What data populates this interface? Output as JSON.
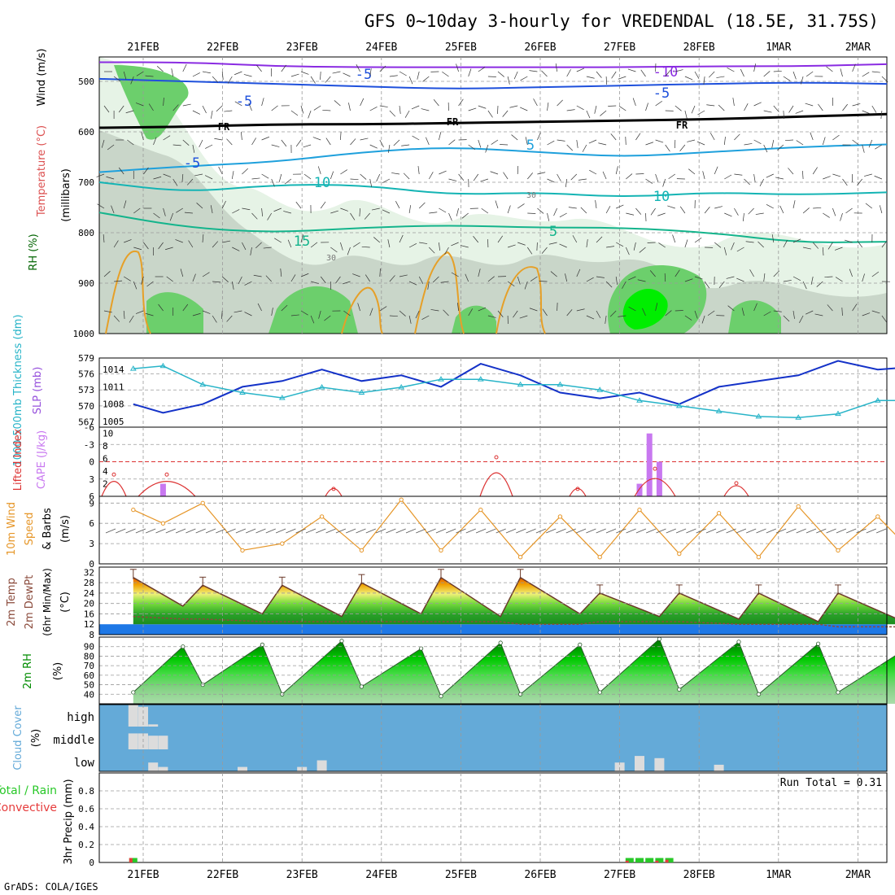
{
  "title": "GFS 0~10day 3-hourly for VREDENDAL (18.5E, 31.75S)",
  "credit": "GrADS: COLA/IGES",
  "dates_top": [
    "21FEB",
    "22FEB",
    "23FEB",
    "24FEB",
    "25FEB",
    "26FEB",
    "27FEB",
    "28FEB",
    "1MAR",
    "2MAR"
  ],
  "dates_bottom": [
    "21FEB",
    "22FEB",
    "23FEB",
    "24FEB",
    "25FEB",
    "26FEB",
    "27FEB",
    "28FEB",
    "1MAR",
    "2MAR"
  ],
  "colors": {
    "frame": "#000000",
    "grid": "#9a9a9a",
    "rh_light": "#e6f3e6",
    "rh_mid": "#c9d6c9",
    "rh_green": "#6ccf6c",
    "rh_bright": "#00ee00",
    "temp_violet": "#8a2be2",
    "temp_blue": "#1e50dc",
    "temp_sky": "#1ea0dc",
    "temp_teal": "#14b4b4",
    "temp_green": "#14b48c",
    "temp_orange": "#e6a028",
    "slp": "#1432c8",
    "thickness": "#28b4c8",
    "lifted": "#dc3232",
    "cape": "#c878f0",
    "wind": "#e69628",
    "dewpt": "#8b4b3c",
    "rh2m": "#008c00",
    "cloud": "#64aad8",
    "cloud_fill": "#dcdcdc",
    "precip_total": "#28c828",
    "precip_conv": "#e63c3c"
  },
  "panels": {
    "upper": {
      "label_rh": "RH (%)",
      "label_temp": "Temperature (°C)",
      "label_wind": "Wind (m/s)",
      "label_units": "(millibars)",
      "yticks": [
        "500",
        "600",
        "700",
        "800",
        "900",
        "1000"
      ],
      "iso_labels": [
        "-10",
        "-5",
        "-5",
        "FR",
        "FR",
        "FR",
        "-5",
        "5",
        "-5",
        "10",
        "10",
        "15",
        "5"
      ],
      "rh_labels": [
        "30",
        "30"
      ]
    },
    "slp": {
      "label_thick": "1000-500mb Thickness (dm)",
      "label_slp": "SLP (mb)",
      "left_ticks": [
        "579",
        "576",
        "573",
        "570",
        "567"
      ],
      "right_ticks": [
        "1014",
        "1011",
        "1008",
        "1005"
      ]
    },
    "cape": {
      "label_li": "Lifted Index",
      "label_cape": "CAPE (J/kg)",
      "left_ticks": [
        "-6",
        "-3",
        "0",
        "3",
        "6"
      ],
      "right_ticks": [
        "10",
        "8",
        "6",
        "4",
        "2"
      ]
    },
    "wind": {
      "label1": "10m Wind",
      "label2": "Speed",
      "label3": "& Barbs",
      "units": "(m/s)",
      "ticks": [
        "9",
        "6",
        "3",
        "0"
      ]
    },
    "temp2m": {
      "label1": "2m Temp",
      "label2": "2m DewPt",
      "label3": "(6hr Min/Max)",
      "units": "(°C)",
      "ticks": [
        "32",
        "28",
        "24",
        "20",
        "16",
        "12",
        "8"
      ]
    },
    "rh2m": {
      "label": "2m RH",
      "units": "(%)",
      "ticks": [
        "90",
        "80",
        "70",
        "60",
        "50",
        "40"
      ]
    },
    "cloud": {
      "label": "Cloud Cover",
      "units": "(%)",
      "levels": [
        "high",
        "middle",
        "low"
      ]
    },
    "precip": {
      "label_total": "Total / Rain",
      "label_conv": "Convective",
      "label_units": "3hr Precip (mm)",
      "ticks": [
        "0.8",
        "0.6",
        "0.4",
        "0.2",
        "0"
      ],
      "run_total": "Run Total = 0.31"
    }
  },
  "chart_data": [
    {
      "type": "area",
      "title": "GFS 0~10day 3-hourly for VREDENDAL (18.5E, 31.75S)",
      "ylabel": "millibars",
      "yticks": [
        500,
        600,
        700,
        800,
        900,
        1000
      ],
      "ylim": [
        1000,
        450
      ],
      "series": [
        {
          "name": "-10 °C isotherm",
          "values": [
            462,
            462,
            470,
            472,
            472,
            472,
            472,
            470,
            470,
            466
          ]
        },
        {
          "name": "-5 °C isotherm",
          "values": [
            495,
            500,
            505,
            510,
            515,
            512,
            508,
            505,
            502,
            505
          ]
        },
        {
          "name": "0 °C isotherm (FR)",
          "values": [
            592,
            590,
            585,
            585,
            583,
            580,
            578,
            575,
            570,
            565
          ]
        },
        {
          "name": "5 °C isotherm",
          "values": [
            680,
            668,
            660,
            640,
            630,
            640,
            650,
            640,
            630,
            625
          ]
        },
        {
          "name": "10 °C isotherm",
          "values": [
            700,
            720,
            705,
            705,
            725,
            720,
            730,
            720,
            725,
            720
          ]
        },
        {
          "name": "15 °C isotherm",
          "values": [
            760,
            790,
            800,
            790,
            785,
            790,
            790,
            800,
            820,
            818
          ]
        }
      ]
    },
    {
      "type": "line",
      "x": [
        "20FEB21Z",
        "21FEB06Z",
        "21FEB18Z",
        "22FEB06Z",
        "22FEB18Z",
        "23FEB06Z",
        "23FEB18Z",
        "24FEB06Z",
        "24FEB18Z",
        "25FEB06Z",
        "25FEB18Z",
        "26FEB06Z",
        "26FEB18Z",
        "27FEB06Z",
        "27FEB18Z",
        "28FEB06Z",
        "28FEB18Z",
        "1MAR06Z",
        "1MAR18Z",
        "2MAR06Z",
        "2MAR18Z"
      ],
      "series": [
        {
          "name": "SLP (mb)",
          "axis": "right",
          "values": [
            1008,
            1006.5,
            1008,
            1011,
            1012,
            1014,
            1012,
            1013,
            1011,
            1015,
            1013,
            1010,
            1009,
            1010,
            1008,
            1011,
            1012,
            1013,
            1015.5,
            1014,
            1014.5
          ]
        },
        {
          "name": "1000-500mb Thickness (dm)",
          "axis": "left",
          "values": [
            577,
            577.5,
            574,
            572.5,
            571.5,
            573.5,
            572.5,
            573.5,
            575,
            575,
            574,
            574,
            573,
            571,
            570,
            569,
            568,
            567.8,
            568.5,
            571,
            571
          ]
        }
      ],
      "ylim_left": [
        566,
        579
      ],
      "ylim_right": [
        1004,
        1016
      ]
    },
    {
      "type": "bar",
      "x": [
        "21FEB06Z",
        "27FEB06Z",
        "27FEB09Z",
        "27FEB12Z"
      ],
      "series": [
        {
          "name": "CAPE (J/kg)",
          "values": [
            2,
            2,
            10,
            5.5
          ]
        },
        {
          "name": "Lifted Index",
          "values": [
            2.5,
            -0.5,
            -3,
            1.5
          ]
        }
      ],
      "ylim_right": [
        0,
        11
      ],
      "ylim_left": [
        6,
        -6
      ]
    },
    {
      "type": "line",
      "x": [
        "20FEB21Z",
        "21FEB06Z",
        "21FEB18Z",
        "22FEB06Z",
        "22FEB18Z",
        "23FEB06Z",
        "23FEB18Z",
        "24FEB06Z",
        "24FEB18Z",
        "25FEB06Z",
        "25FEB18Z",
        "26FEB06Z",
        "26FEB18Z",
        "27FEB06Z",
        "27FEB18Z",
        "28FEB06Z",
        "28FEB18Z",
        "1MAR06Z",
        "1MAR18Z",
        "2MAR06Z",
        "2MAR18Z"
      ],
      "series": [
        {
          "name": "10m Wind Speed",
          "values": [
            8,
            6,
            9,
            2,
            3,
            7,
            2,
            9.5,
            2,
            8,
            1,
            7,
            1,
            8,
            1.5,
            7.5,
            1,
            8.5,
            2,
            7,
            1
          ]
        }
      ],
      "ylim": [
        0,
        10
      ]
    },
    {
      "type": "area",
      "x": [
        "20FEB21Z",
        "21FEB12Z",
        "21FEB18Z",
        "22FEB12Z",
        "22FEB18Z",
        "23FEB12Z",
        "23FEB18Z",
        "24FEB12Z",
        "24FEB18Z",
        "25FEB12Z",
        "25FEB18Z",
        "26FEB12Z",
        "26FEB18Z",
        "27FEB12Z",
        "27FEB18Z",
        "28FEB12Z",
        "28FEB18Z",
        "1MAR12Z",
        "1MAR18Z",
        "2MAR12Z"
      ],
      "series": [
        {
          "name": "2m Temp",
          "values": [
            30,
            19,
            27,
            16,
            27,
            15,
            28,
            16,
            30,
            15,
            30,
            16,
            24,
            15,
            24,
            14,
            24,
            13,
            24,
            14
          ]
        },
        {
          "name": "2m DewPt",
          "values": [
            15,
            14,
            14,
            13,
            13,
            13,
            13,
            13,
            13,
            13,
            12,
            12,
            13,
            13,
            13,
            12,
            12,
            12,
            11,
            11
          ]
        }
      ],
      "ylim": [
        8,
        34
      ]
    },
    {
      "type": "area",
      "x": [
        "20FEB21Z",
        "21FEB12Z",
        "21FEB18Z",
        "22FEB12Z",
        "22FEB18Z",
        "23FEB12Z",
        "23FEB18Z",
        "24FEB12Z",
        "24FEB18Z",
        "25FEB12Z",
        "25FEB18Z",
        "26FEB12Z",
        "26FEB18Z",
        "27FEB12Z",
        "27FEB18Z",
        "28FEB12Z",
        "28FEB18Z",
        "1MAR12Z",
        "1MAR18Z",
        "2MAR12Z"
      ],
      "series": [
        {
          "name": "2m RH",
          "values": [
            42,
            90,
            50,
            92,
            40,
            96,
            48,
            88,
            38,
            94,
            40,
            92,
            42,
            98,
            45,
            95,
            40,
            93,
            42,
            82
          ]
        }
      ],
      "ylim": [
        30,
        100
      ]
    },
    {
      "type": "bar",
      "x": [
        "20FEB21Z",
        "21FEB00Z",
        "21FEB03Z",
        "21FEB06Z",
        "22FEB06Z",
        "23FEB00Z",
        "23FEB06Z",
        "27FEB00Z",
        "27FEB06Z",
        "27FEB12Z",
        "28FEB06Z"
      ],
      "series": [
        {
          "name": "Cloud high",
          "values": [
            100,
            90,
            10,
            0,
            0,
            0,
            0,
            0,
            0,
            0,
            0
          ]
        },
        {
          "name": "Cloud middle",
          "values": [
            70,
            70,
            60,
            60,
            0,
            0,
            0,
            0,
            0,
            0,
            0
          ]
        },
        {
          "name": "Cloud low",
          "values": [
            0,
            0,
            40,
            20,
            20,
            20,
            50,
            40,
            70,
            60,
            30
          ]
        }
      ]
    },
    {
      "type": "bar",
      "x": [
        "20FEB21Z",
        "27FEB03Z",
        "27FEB06Z",
        "27FEB09Z",
        "27FEB12Z",
        "27FEB15Z"
      ],
      "series": [
        {
          "name": "Total / Rain",
          "values": [
            0.05,
            0.05,
            0.05,
            0.05,
            0.05,
            0.05
          ]
        },
        {
          "name": "Convective",
          "values": [
            0.05,
            0.02,
            0.0,
            0.0,
            0.02,
            0.03
          ]
        }
      ],
      "ylim": [
        0,
        1
      ]
    }
  ]
}
